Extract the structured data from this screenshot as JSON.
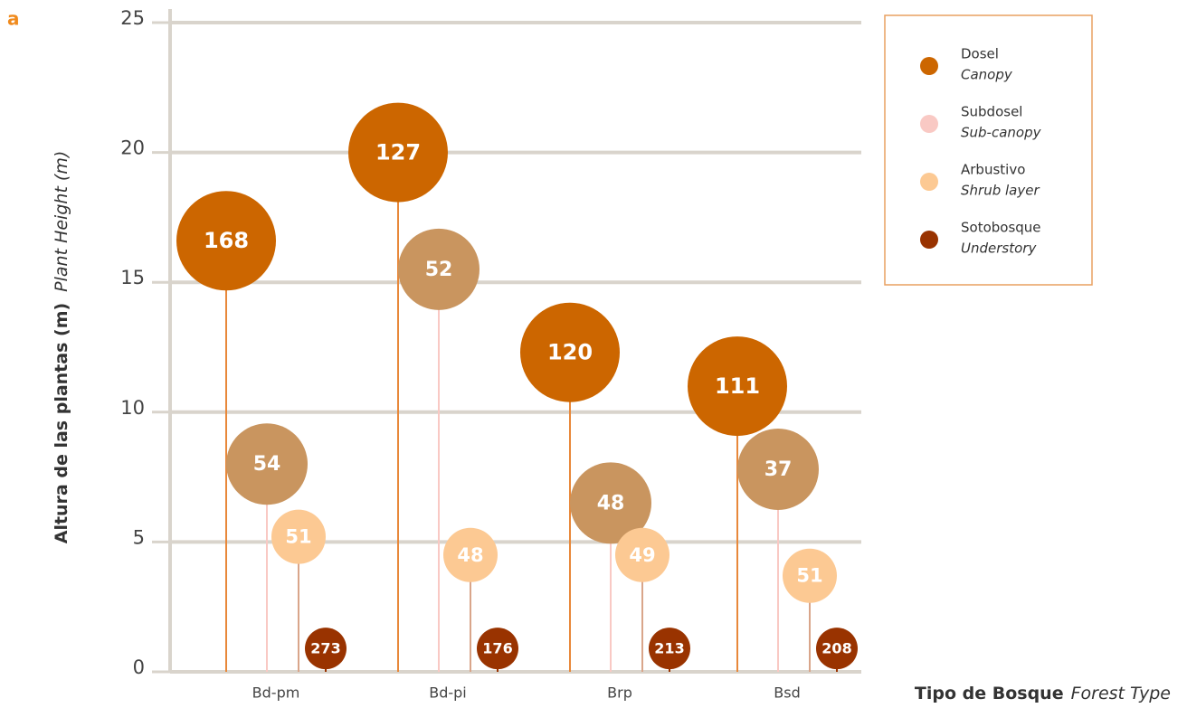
{
  "panel_label": "a",
  "chart_data": {
    "type": "bubble-lollipop",
    "ylabel": "Altura de las plantas (m)",
    "ylabel_en": "Plant Height (m)",
    "xlabel": "Tipo de Bosque",
    "xlabel_en": "Forest Type",
    "categories": [
      "Bd-pm",
      "Bd-pi",
      "Brp",
      "Bsd"
    ],
    "ylim": [
      0,
      25
    ],
    "yticks": [
      0,
      5,
      10,
      15,
      20,
      25
    ],
    "grid": true,
    "legend": "upper right",
    "series": [
      {
        "name": "Dosel",
        "name_en": "Canopy",
        "color": "#cc6600",
        "stem_color": "#e8883a",
        "legend_color": "#cc6600",
        "values": [
          16.6,
          20.0,
          12.3,
          11.0
        ],
        "counts": [
          168,
          127,
          120,
          111
        ]
      },
      {
        "name": "Subdosel",
        "name_en": "Sub-canopy",
        "color": "#c9955f",
        "stem_color": "#f9c9c4",
        "legend_color": "#f9c9c4",
        "values": [
          8.0,
          15.5,
          6.5,
          7.8
        ],
        "counts": [
          54,
          52,
          48,
          37
        ]
      },
      {
        "name": "Arbustivo",
        "name_en": "Shrub layer",
        "color": "#fcc993",
        "stem_color": "#d9a58a",
        "legend_color": "#fcc993",
        "values": [
          5.2,
          4.5,
          4.5,
          3.7
        ],
        "counts": [
          51,
          48,
          49,
          51
        ]
      },
      {
        "name": "Sotobosque",
        "name_en": "Understory",
        "color": "#993300",
        "stem_color": "#993300",
        "legend_color": "#993300",
        "values": [
          0.9,
          0.9,
          0.9,
          0.9
        ],
        "counts": [
          273,
          176,
          213,
          208
        ]
      }
    ]
  }
}
